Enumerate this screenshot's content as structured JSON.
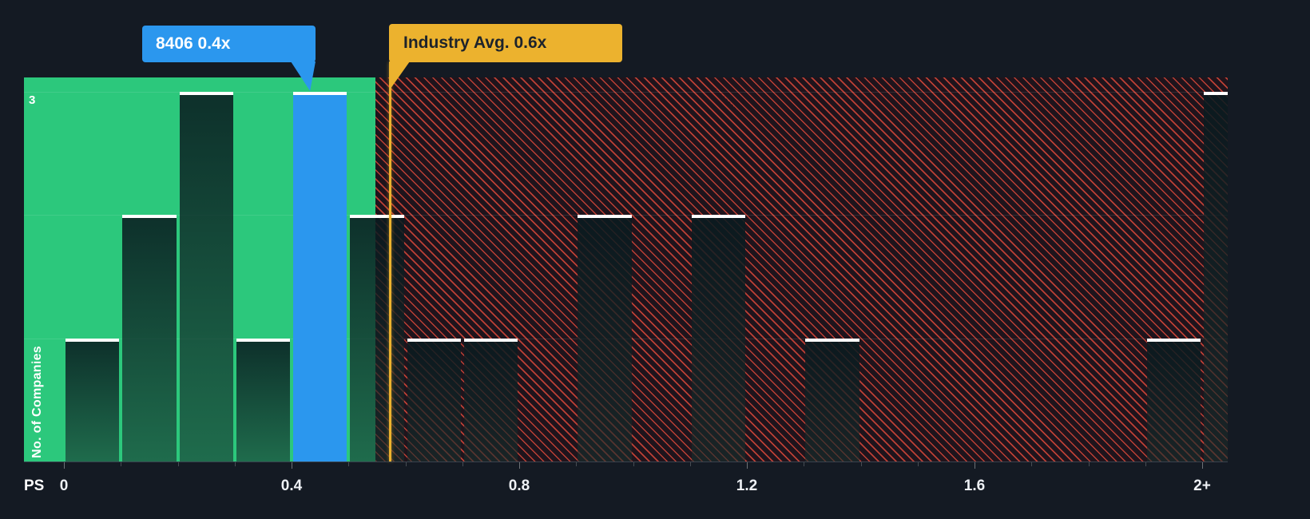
{
  "chart_data": {
    "type": "bar",
    "subtype": "histogram",
    "title": "",
    "ylabel": "No. of Companies",
    "y_max_label": "3",
    "ylim": [
      0,
      3
    ],
    "gridlines": [
      1,
      2,
      3
    ],
    "x_axis_prefix": "PS",
    "x_ticks": [
      {
        "label": "0",
        "value": 0
      },
      {
        "label": "0.4",
        "value": 0.4
      },
      {
        "label": "0.8",
        "value": 0.8
      },
      {
        "label": "1.2",
        "value": 1.2
      },
      {
        "label": "1.6",
        "value": 1.6
      },
      {
        "label": "2+",
        "value": 2.0
      }
    ],
    "bucket_width": 0.1,
    "buckets": [
      {
        "x0": 0.0,
        "count": 1
      },
      {
        "x0": 0.1,
        "count": 2
      },
      {
        "x0": 0.2,
        "count": 3
      },
      {
        "x0": 0.3,
        "count": 1
      },
      {
        "x0": 0.4,
        "count": 3,
        "highlight": "company"
      },
      {
        "x0": 0.5,
        "count": 2
      },
      {
        "x0": 0.6,
        "count": 1
      },
      {
        "x0": 0.7,
        "count": 1
      },
      {
        "x0": 0.9,
        "count": 2
      },
      {
        "x0": 1.1,
        "count": 2
      },
      {
        "x0": 1.3,
        "count": 1
      },
      {
        "x0": 1.9,
        "count": 1
      },
      {
        "x0": 2.0,
        "count": 3,
        "clipped": true
      }
    ],
    "company_marker": {
      "label": "8406 0.4x",
      "value": 0.4
    },
    "industry_marker": {
      "label": "Industry Avg. 0.6x",
      "value": 0.6
    }
  },
  "colors": {
    "background": "#141a23",
    "below_avg_green": "#2cc87c",
    "company_blue": "#2b97ee",
    "industry_yellow": "#ecb22e",
    "hatch_red": "#e94d3c",
    "bar_cap_white": "#ffffff"
  }
}
